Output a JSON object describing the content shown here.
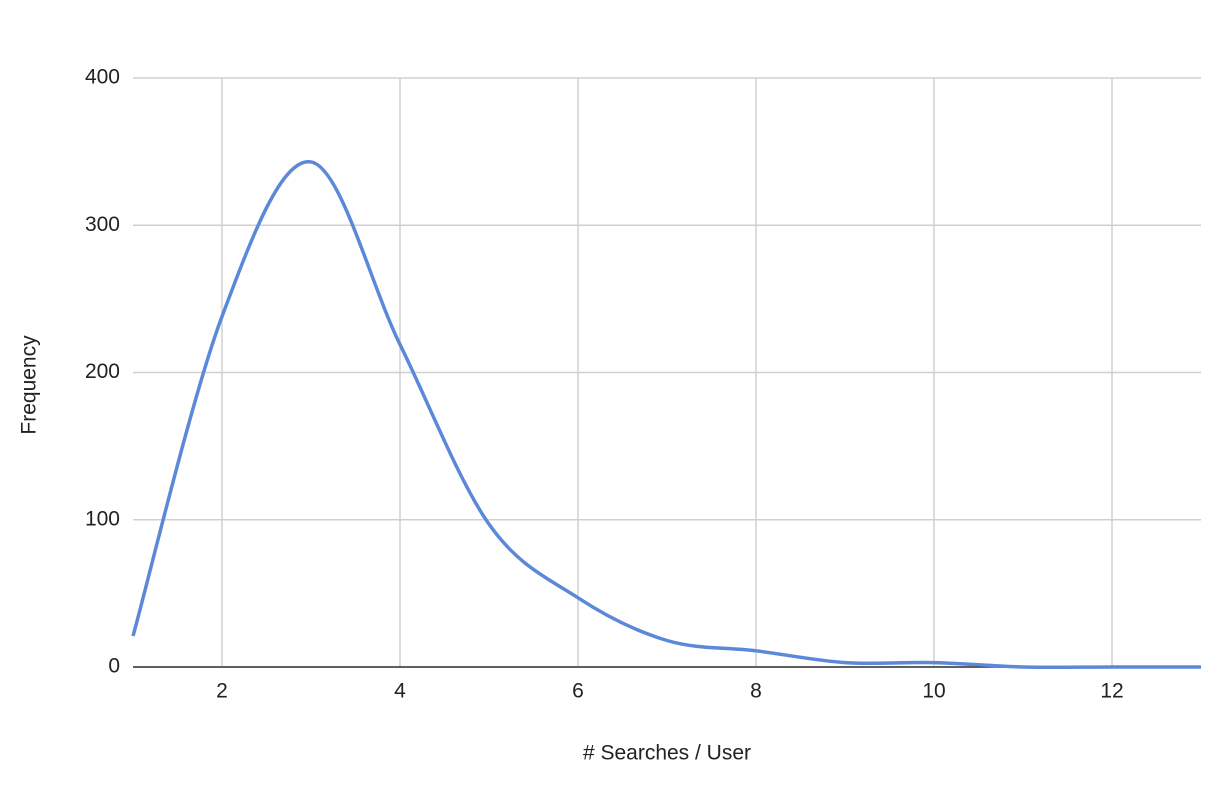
{
  "chart_data": {
    "type": "line",
    "x_label": "# Searches / User",
    "y_label": "Frequency",
    "x": [
      1,
      2,
      3,
      4,
      5,
      6,
      7,
      8,
      9,
      10,
      11,
      12,
      13
    ],
    "series": [
      {
        "color": "#5b88d9",
        "values": [
          21,
          238,
          343,
          219,
          97,
          47,
          18,
          11,
          3,
          3,
          0,
          0,
          0
        ]
      }
    ],
    "xlim": [
      1,
      13
    ],
    "xticks": [
      2,
      4,
      6,
      8,
      10,
      12
    ],
    "ylim": [
      0,
      400
    ],
    "yticks": [
      0,
      100,
      200,
      300,
      400
    ],
    "grid": true
  }
}
